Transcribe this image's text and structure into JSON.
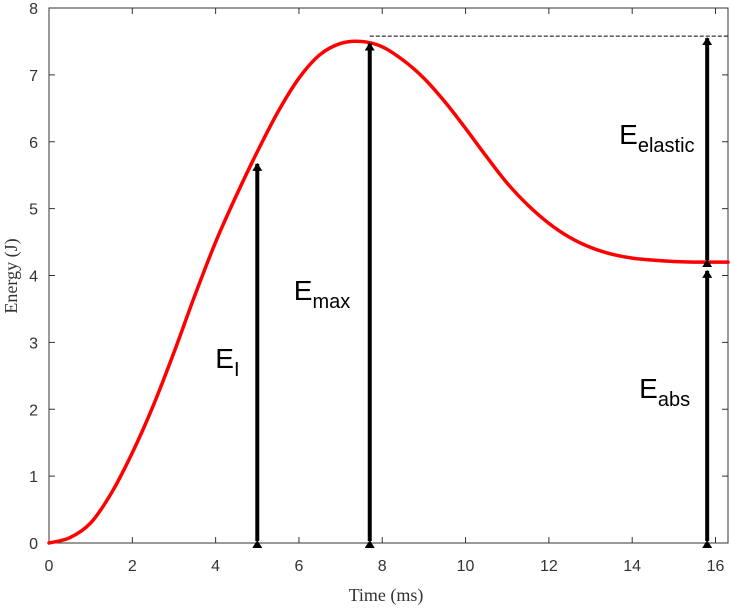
{
  "chart_data": {
    "type": "line",
    "xlabel": "Time (ms)",
    "ylabel": "Energy (J)",
    "xlim": [
      0,
      16.3
    ],
    "ylim": [
      0,
      8
    ],
    "xticks": [
      0,
      2,
      4,
      6,
      8,
      10,
      12,
      14,
      16
    ],
    "yticks": [
      0,
      1,
      2,
      3,
      4,
      5,
      6,
      7,
      8
    ],
    "x_tick_labels": [
      "0",
      "2",
      "4",
      "6",
      "8",
      "10",
      "12",
      "14",
      "16"
    ],
    "y_tick_labels": [
      "0",
      "1",
      "2",
      "3",
      "4",
      "5",
      "6",
      "7",
      "8"
    ],
    "grid": false,
    "series": [
      {
        "color": "#ff0000",
        "x": [
          0,
          0.5,
          1,
          1.5,
          2,
          2.5,
          3,
          3.5,
          4,
          4.5,
          5,
          5.5,
          6,
          6.5,
          7,
          7.5,
          8,
          8.5,
          9,
          9.5,
          10,
          10.5,
          11,
          11.5,
          12,
          12.5,
          13,
          13.5,
          14,
          14.5,
          15,
          15.5,
          16,
          16.3
        ],
        "y": [
          0,
          0.08,
          0.3,
          0.75,
          1.35,
          2.05,
          2.85,
          3.7,
          4.5,
          5.2,
          5.85,
          6.45,
          6.95,
          7.3,
          7.47,
          7.5,
          7.42,
          7.22,
          6.95,
          6.6,
          6.2,
          5.78,
          5.38,
          5.05,
          4.78,
          4.57,
          4.42,
          4.32,
          4.26,
          4.23,
          4.21,
          4.2,
          4.2,
          4.2
        ]
      }
    ],
    "reference_line": {
      "y": 7.58,
      "x_from": 7.7,
      "x_to": 16.3,
      "style": "dashed"
    },
    "annotations": [
      {
        "main": "E",
        "sub": "I",
        "arrow_x": 5.0,
        "arrow_from": 0,
        "arrow_to": 5.7
      },
      {
        "main": "E",
        "sub": "max",
        "arrow_x": 7.7,
        "arrow_from": 0,
        "arrow_to": 7.5
      },
      {
        "main": "E",
        "sub": "elastic",
        "arrow_x": 15.8,
        "arrow_from": 4.2,
        "arrow_to": 7.58
      },
      {
        "main": "E",
        "sub": "abs",
        "arrow_x": 15.8,
        "arrow_from": 0,
        "arrow_to": 4.1
      }
    ]
  }
}
